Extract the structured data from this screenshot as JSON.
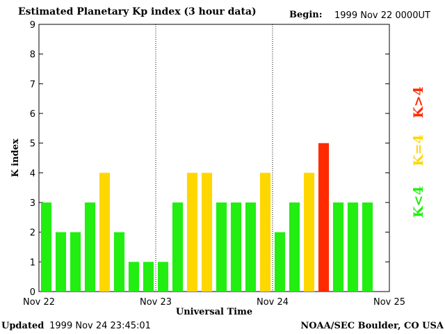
{
  "header": {
    "title": "Estimated Planetary Kp index (3 hour data)",
    "begin_label": "Begin:",
    "begin_value": "1999 Nov 22 0000UT"
  },
  "footer": {
    "updated_label": "Updated",
    "updated_value": "1999 Nov 24 23:45:01",
    "source": "NOAA/SEC Boulder, CO USA"
  },
  "legend": [
    {
      "label": "K<4",
      "color": "#22ee11"
    },
    {
      "label": "K=4",
      "color": "#ffd700"
    },
    {
      "label": "K>4",
      "color": "#ff2a00"
    }
  ],
  "chart_data": {
    "type": "bar",
    "title": "Estimated Planetary Kp index (3 hour data)",
    "xlabel": "Universal Time",
    "ylabel": "K index",
    "ylim": [
      0,
      9
    ],
    "yticks": [
      0,
      1,
      2,
      3,
      4,
      5,
      6,
      7,
      8,
      9
    ],
    "xticks": [
      "Nov 22",
      "Nov 23",
      "Nov 24",
      "Nov 25"
    ],
    "interval_hours": 3,
    "values": [
      3,
      2,
      2,
      3,
      4,
      2,
      1,
      1,
      1,
      3,
      4,
      4,
      3,
      3,
      3,
      4,
      2,
      3,
      4,
      5,
      3,
      3,
      3
    ],
    "colors": {
      "below": "#22ee11",
      "equal": "#ffd700",
      "above": "#ff2a00"
    },
    "grid": "day separators dotted"
  }
}
